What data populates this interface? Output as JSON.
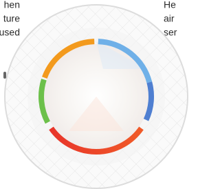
{
  "left_text": [
    "hen",
    "ture",
    "used"
  ],
  "right_text": [
    "He",
    "air",
    "ser"
  ]
}
